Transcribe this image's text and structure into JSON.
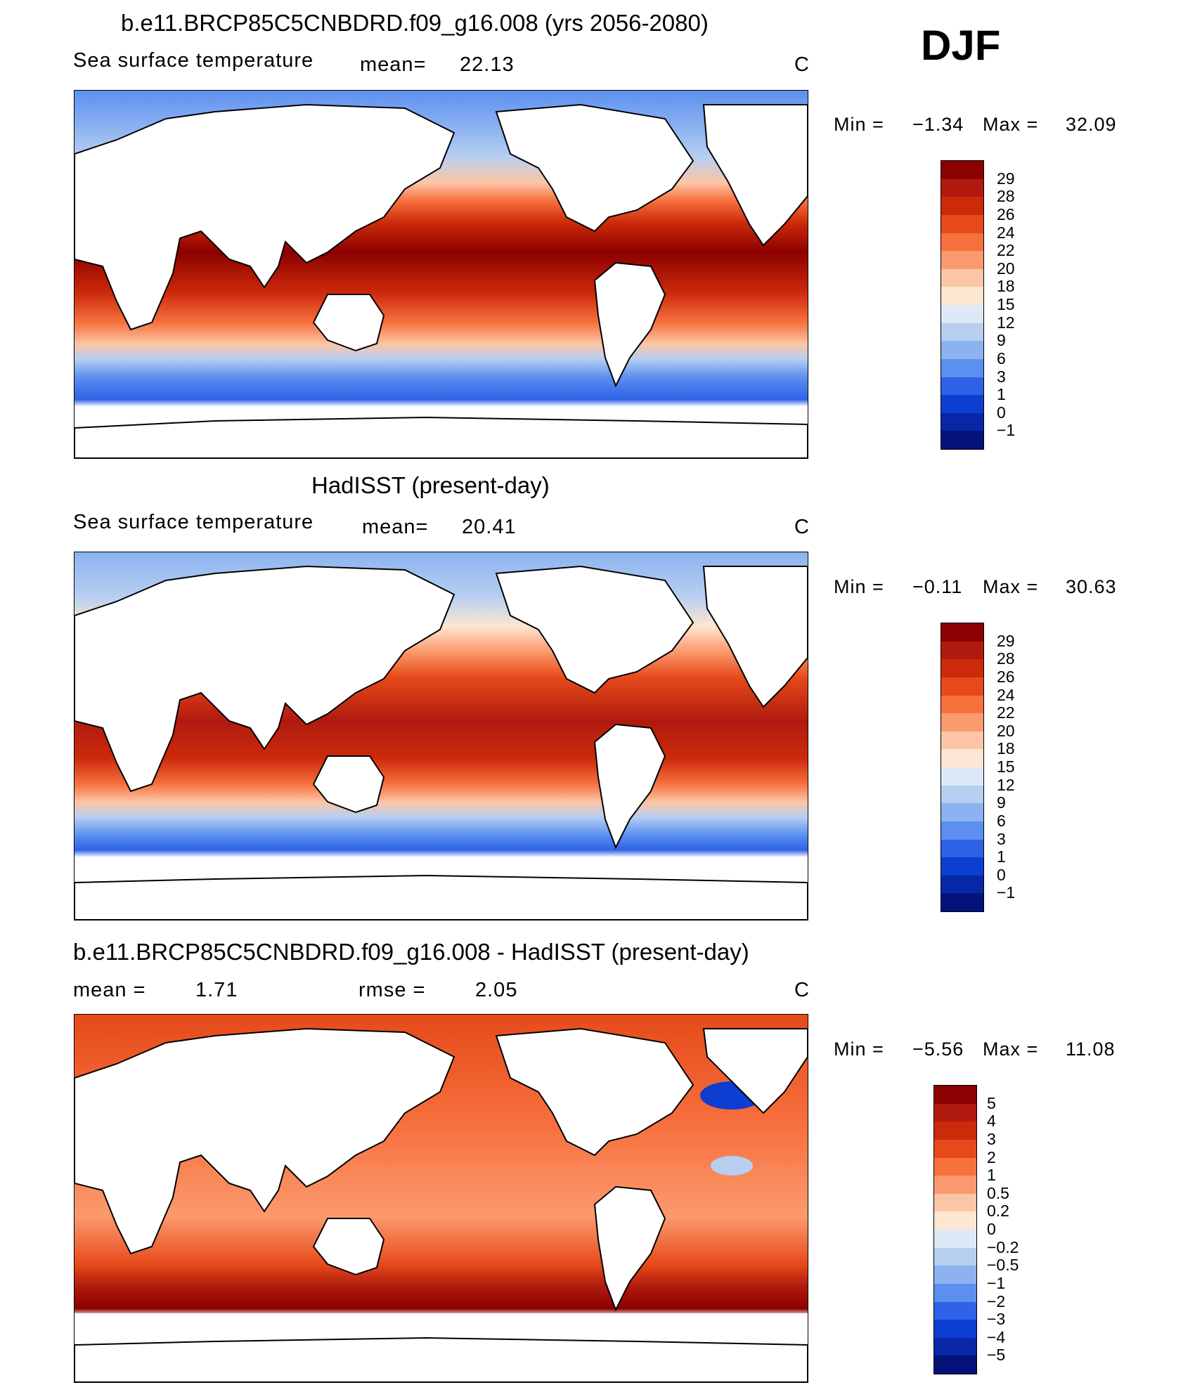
{
  "season": "DJF",
  "panels": [
    {
      "title": "b.e11.BRCP85C5CNBDRD.f09_g16.008 (yrs 2056-2080)",
      "variable": "Sea surface temperature",
      "stat1_label": "mean=",
      "stat1_value": "22.13",
      "stat2_label": "",
      "stat2_value": "",
      "units": "C",
      "min_label": "Min =",
      "min_value": "−1.34",
      "max_label": "Max =",
      "max_value": "32.09",
      "colorbar_levels": [
        "29",
        "28",
        "26",
        "24",
        "22",
        "20",
        "18",
        "15",
        "12",
        "9",
        "6",
        "3",
        "1",
        "0",
        "−1"
      ],
      "colorbar_colors": [
        "#8b0000",
        "#b01a0e",
        "#cc2a0a",
        "#e64a1a",
        "#f7703e",
        "#fb9a6e",
        "#fcc6a6",
        "#fde6d2",
        "#dde9f6",
        "#b6cff1",
        "#8cb2f0",
        "#5c8ff0",
        "#2f62e6",
        "#0d3ed2",
        "#0727a7",
        "#03137a"
      ]
    },
    {
      "title": "HadISST (present-day)",
      "variable": "Sea surface temperature",
      "stat1_label": "mean=",
      "stat1_value": "20.41",
      "stat2_label": "",
      "stat2_value": "",
      "units": "C",
      "min_label": "Min =",
      "min_value": "−0.11",
      "max_label": "Max =",
      "max_value": "30.63",
      "colorbar_levels": [
        "29",
        "28",
        "26",
        "24",
        "22",
        "20",
        "18",
        "15",
        "12",
        "9",
        "6",
        "3",
        "1",
        "0",
        "−1"
      ],
      "colorbar_colors": [
        "#8b0000",
        "#b01a0e",
        "#cc2a0a",
        "#e64a1a",
        "#f7703e",
        "#fb9a6e",
        "#fcc6a6",
        "#fde6d2",
        "#dde9f6",
        "#b6cff1",
        "#8cb2f0",
        "#5c8ff0",
        "#2f62e6",
        "#0d3ed2",
        "#0727a7",
        "#03137a"
      ]
    },
    {
      "title": "b.e11.BRCP85C5CNBDRD.f09_g16.008 - HadISST (present-day)",
      "variable": "",
      "stat1_label": "mean =",
      "stat1_value": "1.71",
      "stat2_label": "rmse =",
      "stat2_value": "2.05",
      "units": "C",
      "min_label": "Min =",
      "min_value": "−5.56",
      "max_label": "Max =",
      "max_value": "11.08",
      "colorbar_levels": [
        "5",
        "4",
        "3",
        "2",
        "1",
        "0.5",
        "0.2",
        "0",
        "−0.2",
        "−0.5",
        "−1",
        "−2",
        "−3",
        "−4",
        "−5"
      ],
      "colorbar_colors": [
        "#8b0000",
        "#b01a0e",
        "#cc2a0a",
        "#e64a1a",
        "#f7703e",
        "#fb9a6e",
        "#fcc6a6",
        "#fde6d2",
        "#dde9f6",
        "#b6cff1",
        "#8cb2f0",
        "#5c8ff0",
        "#2f62e6",
        "#0d3ed2",
        "#0727a7",
        "#03137a"
      ]
    }
  ]
}
